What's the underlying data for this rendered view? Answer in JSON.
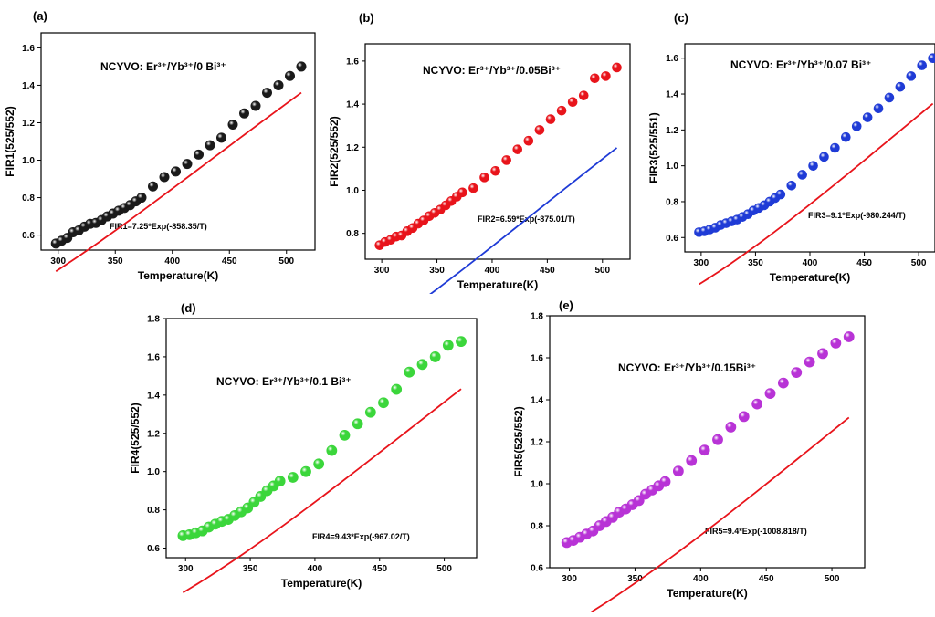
{
  "chart_data": [
    {
      "id": "a",
      "type": "scatter",
      "panel_label": "(a)",
      "annotation": "NCYVO: Er³⁺/Yb³⁺/0 Bi³⁺",
      "equation": "FIR1=7.25*Exp(-858.35/T)",
      "xlabel": "Temperature(K)",
      "ylabel": "FIR1(525/552)",
      "xlim": [
        285,
        525
      ],
      "ylim": [
        0.52,
        1.68
      ],
      "xticks": [
        300,
        350,
        400,
        450,
        500
      ],
      "yticks": [
        0.6,
        0.8,
        1.0,
        1.2,
        1.4,
        1.6
      ],
      "marker_color": "#1a1a1a",
      "fit_color": "#e8141b",
      "fit": {
        "a": 7.25,
        "b": 858.35,
        "x0": 298,
        "x1": 513
      },
      "x": [
        298,
        303,
        308,
        313,
        318,
        323,
        328,
        333,
        338,
        343,
        348,
        353,
        358,
        363,
        368,
        373,
        383,
        393,
        403,
        413,
        423,
        433,
        443,
        453,
        463,
        473,
        483,
        493,
        503,
        513
      ],
      "y": [
        0.555,
        0.57,
        0.585,
        0.615,
        0.625,
        0.645,
        0.66,
        0.665,
        0.68,
        0.7,
        0.715,
        0.73,
        0.745,
        0.76,
        0.78,
        0.8,
        0.86,
        0.91,
        0.94,
        0.98,
        1.03,
        1.08,
        1.12,
        1.19,
        1.25,
        1.29,
        1.36,
        1.4,
        1.45,
        1.5
      ]
    },
    {
      "id": "b",
      "type": "scatter",
      "panel_label": "(b)",
      "annotation": "NCYVO: Er³⁺/Yb³⁺/0.05Bi³⁺",
      "equation": "FIR2=6.59*Exp(-875.01/T)",
      "xlabel": "Temperature(K)",
      "ylabel": "FIR2(525/552)",
      "xlim": [
        285,
        525
      ],
      "ylim": [
        0.68,
        1.68
      ],
      "xticks": [
        300,
        350,
        400,
        450,
        500
      ],
      "yticks": [
        0.8,
        1.0,
        1.2,
        1.4,
        1.6
      ],
      "marker_color": "#e8141b",
      "fit_color": "#1f3bd6",
      "fit": {
        "a": 6.59,
        "b": 875.01,
        "x0": 298,
        "x1": 513
      },
      "x": [
        298,
        303,
        308,
        313,
        318,
        323,
        328,
        333,
        338,
        343,
        348,
        353,
        358,
        363,
        368,
        373,
        383,
        393,
        403,
        413,
        423,
        433,
        443,
        453,
        463,
        473,
        483,
        493,
        503,
        513
      ],
      "y": [
        0.745,
        0.76,
        0.77,
        0.785,
        0.79,
        0.81,
        0.825,
        0.845,
        0.86,
        0.88,
        0.895,
        0.91,
        0.93,
        0.95,
        0.97,
        0.99,
        1.01,
        1.06,
        1.09,
        1.14,
        1.19,
        1.23,
        1.28,
        1.33,
        1.37,
        1.41,
        1.44,
        1.52,
        1.53,
        1.57
      ]
    },
    {
      "id": "c",
      "type": "scatter",
      "panel_label": "(c)",
      "annotation": "NCYVO: Er³⁺/Yb³⁺/0.07 Bi³⁺",
      "equation": "FIR3=9.1*Exp(-980.244/T)",
      "xlabel": "Temperature(K)",
      "ylabel": "FIR3(525/551)",
      "xlim": [
        285,
        515
      ],
      "ylim": [
        0.52,
        1.68
      ],
      "xticks": [
        300,
        350,
        400,
        450,
        500
      ],
      "yticks": [
        0.6,
        0.8,
        1.0,
        1.2,
        1.4,
        1.6
      ],
      "marker_color": "#1f3bd6",
      "fit_color": "#e8141b",
      "fit": {
        "a": 9.1,
        "b": 980.244,
        "x0": 298,
        "x1": 513
      },
      "x": [
        298,
        303,
        308,
        313,
        318,
        323,
        328,
        333,
        338,
        343,
        348,
        353,
        358,
        363,
        368,
        373,
        383,
        393,
        403,
        413,
        423,
        433,
        443,
        453,
        463,
        473,
        483,
        493,
        503,
        513
      ],
      "y": [
        0.63,
        0.635,
        0.645,
        0.655,
        0.67,
        0.68,
        0.69,
        0.7,
        0.715,
        0.73,
        0.75,
        0.765,
        0.78,
        0.8,
        0.82,
        0.84,
        0.89,
        0.95,
        1.0,
        1.05,
        1.1,
        1.16,
        1.22,
        1.27,
        1.32,
        1.38,
        1.44,
        1.5,
        1.56,
        1.6
      ]
    },
    {
      "id": "d",
      "type": "scatter",
      "panel_label": "(d)",
      "annotation": "NCYVO: Er³⁺/Yb³⁺/0.1 Bi³⁺",
      "equation": "FIR4=9.43*Exp(-967.02/T)",
      "xlabel": "Temperature(K)",
      "ylabel": "FIR4(525/552)",
      "xlim": [
        285,
        525
      ],
      "ylim": [
        0.55,
        1.8
      ],
      "xticks": [
        300,
        350,
        400,
        450,
        500
      ],
      "yticks": [
        0.6,
        0.8,
        1.0,
        1.2,
        1.4,
        1.6,
        1.8
      ],
      "marker_color": "#3bd63b",
      "fit_color": "#e8141b",
      "fit": {
        "a": 9.43,
        "b": 967.02,
        "x0": 298,
        "x1": 513
      },
      "x": [
        298,
        303,
        308,
        313,
        318,
        323,
        328,
        333,
        338,
        343,
        348,
        353,
        358,
        363,
        368,
        373,
        383,
        393,
        403,
        413,
        423,
        433,
        443,
        453,
        463,
        473,
        483,
        493,
        503,
        513
      ],
      "y": [
        0.665,
        0.67,
        0.68,
        0.69,
        0.71,
        0.725,
        0.74,
        0.75,
        0.77,
        0.79,
        0.81,
        0.84,
        0.87,
        0.9,
        0.925,
        0.95,
        0.97,
        1.0,
        1.04,
        1.11,
        1.19,
        1.25,
        1.31,
        1.36,
        1.43,
        1.52,
        1.56,
        1.6,
        1.66,
        1.68
      ]
    },
    {
      "id": "e",
      "type": "scatter",
      "panel_label": "(e)",
      "annotation": "NCYVO: Er³⁺/Yb³⁺/0.15Bi³⁺",
      "equation": "FIR5=9.4*Exp(-1008.818/T)",
      "xlabel": "Temperature(K)",
      "ylabel": "FIR5(525/552)",
      "xlim": [
        285,
        525
      ],
      "ylim": [
        0.6,
        1.8
      ],
      "xticks": [
        300,
        350,
        400,
        450,
        500
      ],
      "yticks": [
        0.6,
        0.8,
        1.0,
        1.2,
        1.4,
        1.6,
        1.8
      ],
      "marker_color": "#b833d6",
      "fit_color": "#e8141b",
      "fit": {
        "a": 9.4,
        "b": 1008.818,
        "x0": 298,
        "x1": 513
      },
      "x": [
        298,
        303,
        308,
        313,
        318,
        323,
        328,
        333,
        338,
        343,
        348,
        353,
        358,
        363,
        368,
        373,
        383,
        393,
        403,
        413,
        423,
        433,
        443,
        453,
        463,
        473,
        483,
        493,
        503,
        513
      ],
      "y": [
        0.72,
        0.73,
        0.745,
        0.76,
        0.775,
        0.8,
        0.82,
        0.84,
        0.865,
        0.88,
        0.9,
        0.92,
        0.95,
        0.97,
        0.99,
        1.01,
        1.06,
        1.11,
        1.16,
        1.21,
        1.27,
        1.32,
        1.38,
        1.43,
        1.48,
        1.53,
        1.58,
        1.62,
        1.67,
        1.7
      ]
    }
  ]
}
